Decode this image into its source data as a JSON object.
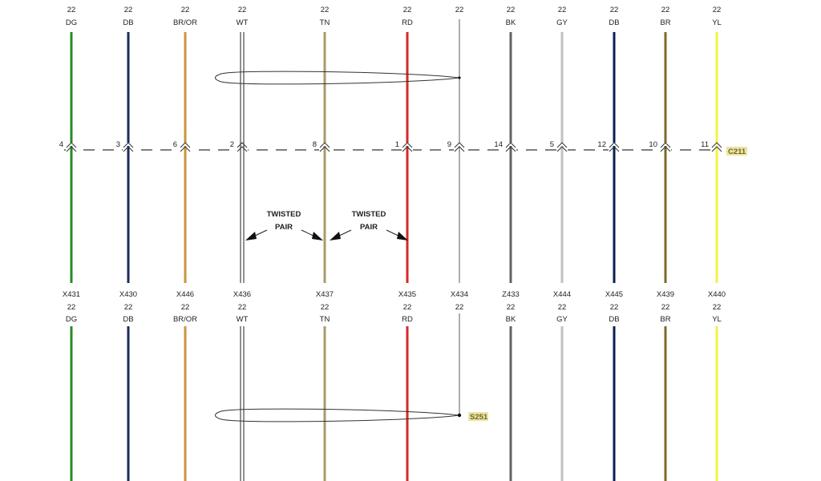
{
  "connector": {
    "name": "C211",
    "label_bg": "#ece3a6"
  },
  "splice": {
    "name": "S251"
  },
  "twisted_pair_labels": [
    {
      "line1": "TWISTED",
      "line2": "PAIR"
    },
    {
      "line1": "TWISTED",
      "line2": "PAIR"
    }
  ],
  "wires": [
    {
      "circuit": "X431",
      "gauge": "22",
      "color_code": "DG",
      "pin": "4",
      "color": "#268a26"
    },
    {
      "circuit": "X430",
      "gauge": "22",
      "color_code": "DB",
      "pin": "3",
      "color": "#1b2d5e"
    },
    {
      "circuit": "X446",
      "gauge": "22",
      "color_code": "BR/OR",
      "pin": "6",
      "color": "#c8963c"
    },
    {
      "circuit": "X436",
      "gauge": "22",
      "color_code": "WT",
      "pin": "2",
      "color": "#ffffff"
    },
    {
      "circuit": "X437",
      "gauge": "22",
      "color_code": "TN",
      "pin": "8",
      "color": "#a99a6a"
    },
    {
      "circuit": "X435",
      "gauge": "22",
      "color_code": "RD",
      "pin": "1",
      "color": "#d42a2a"
    },
    {
      "circuit": "X434",
      "gauge": "22",
      "color_code": "",
      "pin": "9",
      "color": "#777777"
    },
    {
      "circuit": "Z433",
      "gauge": "22",
      "color_code": "BK",
      "pin": "14",
      "color": "#636363"
    },
    {
      "circuit": "X444",
      "gauge": "22",
      "color_code": "GY",
      "pin": "5",
      "color": "#c2c2c2"
    },
    {
      "circuit": "X445",
      "gauge": "22",
      "color_code": "DB",
      "pin": "12",
      "color": "#0b1f50"
    },
    {
      "circuit": "X439",
      "gauge": "22",
      "color_code": "BR",
      "pin": "10",
      "color": "#7b6a2a"
    },
    {
      "circuit": "X440",
      "gauge": "22",
      "color_code": "YL",
      "pin": "11",
      "color": "#f5f040"
    }
  ]
}
